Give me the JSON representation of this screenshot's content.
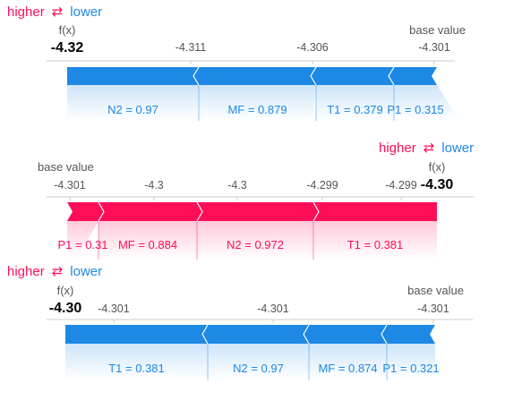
{
  "colors": {
    "higher": "#ff0d57",
    "lower": "#1e88e5"
  },
  "chart_data": [
    {
      "type": "force",
      "legend": {
        "higher": "higher",
        "arrow": "⇄",
        "lower": "lower"
      },
      "fx_label": "f(x)",
      "fx_value": "-4.32",
      "base_label": "base value",
      "ticks": [
        "-4.311",
        "-4.306",
        "-4.301"
      ],
      "features": [
        {
          "label": "N2 = 0.97",
          "effect": "lower"
        },
        {
          "label": "MF = 0.879",
          "effect": "lower"
        },
        {
          "label": "T1 = 0.379",
          "effect": "lower"
        },
        {
          "label": "P1 = 0.315",
          "effect": "lower"
        }
      ]
    },
    {
      "type": "force",
      "legend": {
        "higher": "higher",
        "arrow": "⇄",
        "lower": "lower"
      },
      "fx_label": "f(x)",
      "fx_value": "-4.30",
      "base_label": "base value",
      "ticks": [
        "-4.301",
        "-4.3",
        "-4.3",
        "-4.299",
        "-4.299"
      ],
      "features": [
        {
          "label": "P1 = 0.31",
          "effect": "higher"
        },
        {
          "label": "MF = 0.884",
          "effect": "higher"
        },
        {
          "label": "N2 = 0.972",
          "effect": "higher"
        },
        {
          "label": "T1 = 0.381",
          "effect": "higher"
        }
      ]
    },
    {
      "type": "force",
      "legend": {
        "higher": "higher",
        "arrow": "⇄",
        "lower": "lower"
      },
      "fx_label": "f(x)",
      "fx_value": "-4.30",
      "base_label": "base value",
      "ticks": [
        "-4.301",
        "-4.301",
        "-4.301"
      ],
      "features": [
        {
          "label": "T1 = 0.381",
          "effect": "lower"
        },
        {
          "label": "N2 = 0.97",
          "effect": "lower"
        },
        {
          "label": "MF = 0.874",
          "effect": "lower"
        },
        {
          "label": "P1 = 0.321",
          "effect": "lower"
        }
      ]
    }
  ]
}
